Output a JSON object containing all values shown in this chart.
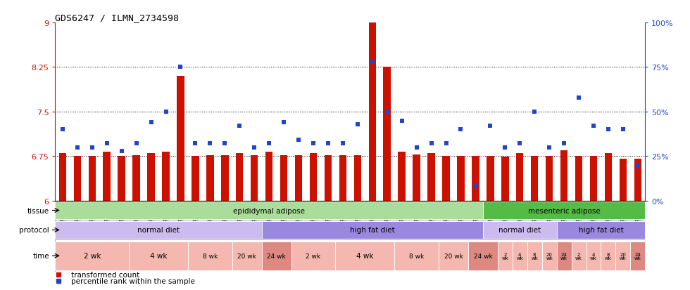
{
  "title": "GDS6247 / ILMN_2734598",
  "samples": [
    "GSM971546",
    "GSM971547",
    "GSM971548",
    "GSM971549",
    "GSM971550",
    "GSM971551",
    "GSM971552",
    "GSM971553",
    "GSM971554",
    "GSM971555",
    "GSM971556",
    "GSM971557",
    "GSM971558",
    "GSM971559",
    "GSM971560",
    "GSM971561",
    "GSM971562",
    "GSM971563",
    "GSM971564",
    "GSM971565",
    "GSM971566",
    "GSM971567",
    "GSM971568",
    "GSM971569",
    "GSM971570",
    "GSM971571",
    "GSM971572",
    "GSM971573",
    "GSM971574",
    "GSM971575",
    "GSM971576",
    "GSM971577",
    "GSM971578",
    "GSM971579",
    "GSM971580",
    "GSM971581",
    "GSM971582",
    "GSM971583",
    "GSM971584",
    "GSM971585"
  ],
  "bar_values": [
    6.8,
    6.75,
    6.75,
    6.82,
    6.75,
    6.76,
    6.8,
    6.82,
    8.1,
    6.75,
    6.76,
    6.76,
    6.8,
    6.76,
    6.82,
    6.76,
    6.76,
    6.8,
    6.76,
    6.76,
    6.76,
    9.0,
    8.25,
    6.82,
    6.78,
    6.8,
    6.75,
    6.75,
    6.75,
    6.75,
    6.74,
    6.8,
    6.75,
    6.75,
    6.85,
    6.75,
    6.75,
    6.8,
    6.7,
    6.7
  ],
  "dot_values_pct": [
    40,
    30,
    30,
    32,
    28,
    32,
    44,
    50,
    75,
    32,
    32,
    32,
    42,
    30,
    32,
    44,
    34,
    32,
    32,
    32,
    43,
    78,
    50,
    45,
    30,
    32,
    32,
    40,
    8,
    42,
    30,
    32,
    50,
    30,
    32,
    58,
    42,
    40,
    40,
    20
  ],
  "ymin": 6.0,
  "ymax": 9.0,
  "yticks": [
    6.0,
    6.75,
    7.5,
    8.25,
    9.0
  ],
  "ytick_labels": [
    "6",
    "6.75",
    "7.5",
    "8.25",
    "9"
  ],
  "hlines": [
    6.75,
    7.5,
    8.25
  ],
  "bar_color": "#cc1100",
  "dot_color": "#2244cc",
  "tissue_groups": [
    {
      "label": "epididymal adipose",
      "start": 0,
      "end": 29,
      "color": "#aadd99"
    },
    {
      "label": "mesenteric adipose",
      "start": 29,
      "end": 40,
      "color": "#55bb44"
    }
  ],
  "protocol_groups": [
    {
      "label": "normal diet",
      "start": 0,
      "end": 14,
      "color": "#ccbbee"
    },
    {
      "label": "high fat diet",
      "start": 14,
      "end": 29,
      "color": "#9988dd"
    },
    {
      "label": "normal diet",
      "start": 29,
      "end": 34,
      "color": "#ccbbee"
    },
    {
      "label": "high fat diet",
      "start": 34,
      "end": 40,
      "color": "#9988dd"
    }
  ],
  "time_groups": [
    {
      "label": "2 wk",
      "start": 0,
      "end": 5,
      "dark": false
    },
    {
      "label": "4 wk",
      "start": 5,
      "end": 9,
      "dark": false
    },
    {
      "label": "8 wk",
      "start": 9,
      "end": 12,
      "dark": false
    },
    {
      "label": "20 wk",
      "start": 12,
      "end": 14,
      "dark": false
    },
    {
      "label": "24 wk",
      "start": 14,
      "end": 16,
      "dark": true
    },
    {
      "label": "2 wk",
      "start": 16,
      "end": 19,
      "dark": false
    },
    {
      "label": "4 wk",
      "start": 19,
      "end": 23,
      "dark": false
    },
    {
      "label": "8 wk",
      "start": 23,
      "end": 26,
      "dark": false
    },
    {
      "label": "20 wk",
      "start": 26,
      "end": 28,
      "dark": false
    },
    {
      "label": "24 wk",
      "start": 28,
      "end": 30,
      "dark": true
    },
    {
      "label": "2\nwk",
      "start": 30,
      "end": 31,
      "dark": false
    },
    {
      "label": "4\nwk",
      "start": 31,
      "end": 32,
      "dark": false
    },
    {
      "label": "8\nwk",
      "start": 32,
      "end": 33,
      "dark": false
    },
    {
      "label": "20\nwk",
      "start": 33,
      "end": 34,
      "dark": false
    },
    {
      "label": "24\nwk",
      "start": 34,
      "end": 35,
      "dark": true
    },
    {
      "label": "2\nwk",
      "start": 35,
      "end": 36,
      "dark": false
    },
    {
      "label": "4\nwk",
      "start": 36,
      "end": 37,
      "dark": false
    },
    {
      "label": "8\nwk",
      "start": 37,
      "end": 38,
      "dark": false
    },
    {
      "label": "20\nwk",
      "start": 38,
      "end": 39,
      "dark": false
    },
    {
      "label": "24\nwk",
      "start": 39,
      "end": 40,
      "dark": true
    }
  ],
  "time_color_normal": "#f5b8b0",
  "time_color_dark": "#dd8880",
  "legend_items": [
    {
      "label": "transformed count",
      "color": "#cc1100"
    },
    {
      "label": "percentile rank within the sample",
      "color": "#2244cc"
    }
  ],
  "right_ytick_labels": [
    "0%",
    "25%",
    "50%",
    "75%",
    "100%"
  ]
}
